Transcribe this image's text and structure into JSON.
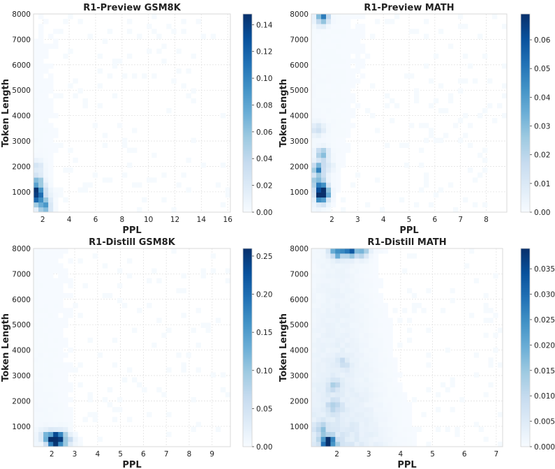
{
  "chart_data": [
    {
      "type": "heatmap",
      "title": "R1-Preview GSM8K",
      "xlabel": "PPL",
      "ylabel": "Token Length",
      "xlim": [
        1.3,
        16.2
      ],
      "ylim": [
        200,
        8000
      ],
      "xticks": [
        2,
        4,
        6,
        8,
        10,
        12,
        14,
        16
      ],
      "yticks": [
        1000,
        2000,
        3000,
        4000,
        5000,
        6000,
        7000,
        8000
      ],
      "colorbar": {
        "min": 0,
        "max": 0.148,
        "ticks": [
          0.0,
          0.02,
          0.04,
          0.06,
          0.08,
          0.1,
          0.12,
          0.14
        ],
        "format": 2
      },
      "hotspots": [
        {
          "x": 1.6,
          "y": 820,
          "value": 0.148
        },
        {
          "x": 1.6,
          "y": 1150,
          "value": 0.095
        },
        {
          "x": 1.6,
          "y": 1500,
          "value": 0.045
        },
        {
          "x": 2.0,
          "y": 520,
          "value": 0.07
        },
        {
          "x": 1.6,
          "y": 2000,
          "value": 0.025
        },
        {
          "x": 2.2,
          "y": 300,
          "value": 0.03
        },
        {
          "x": 2.4,
          "y": 900,
          "value": 0.012
        }
      ]
    },
    {
      "type": "heatmap",
      "title": "R1-Preview MATH",
      "xlabel": "PPL",
      "ylabel": "Token Length",
      "xlim": [
        1.2,
        8.8
      ],
      "ylim": [
        200,
        8000
      ],
      "xticks": [
        2,
        3,
        4,
        5,
        6,
        7,
        8
      ],
      "yticks": [
        1000,
        2000,
        3000,
        4000,
        5000,
        6000,
        7000,
        8000
      ],
      "colorbar": {
        "min": 0,
        "max": 0.069,
        "ticks": [
          0.0,
          0.01,
          0.02,
          0.03,
          0.04,
          0.05,
          0.06
        ],
        "format": 2
      },
      "hotspots": [
        {
          "x": 1.62,
          "y": 1080,
          "value": 0.069
        },
        {
          "x": 1.62,
          "y": 800,
          "value": 0.055
        },
        {
          "x": 1.45,
          "y": 1400,
          "value": 0.04
        },
        {
          "x": 1.45,
          "y": 1900,
          "value": 0.035
        },
        {
          "x": 1.62,
          "y": 2500,
          "value": 0.025
        },
        {
          "x": 1.62,
          "y": 7850,
          "value": 0.045
        },
        {
          "x": 1.45,
          "y": 3500,
          "value": 0.015
        },
        {
          "x": 1.8,
          "y": 2000,
          "value": 0.012
        }
      ]
    },
    {
      "type": "heatmap",
      "title": "R1-Distill GSM8K",
      "xlabel": "PPL",
      "ylabel": "Token Length",
      "xlim": [
        1.2,
        9.8
      ],
      "ylim": [
        200,
        8000
      ],
      "xticks": [
        2,
        3,
        4,
        5,
        6,
        7,
        8,
        9
      ],
      "yticks": [
        1000,
        2000,
        3000,
        4000,
        5000,
        6000,
        7000,
        8000
      ],
      "colorbar": {
        "min": 0,
        "max": 0.26,
        "ticks": [
          0.0,
          0.05,
          0.1,
          0.15,
          0.2,
          0.25
        ],
        "format": 2
      },
      "hotspots": [
        {
          "x": 2.0,
          "y": 500,
          "value": 0.26
        },
        {
          "x": 2.25,
          "y": 500,
          "value": 0.24
        },
        {
          "x": 2.55,
          "y": 450,
          "value": 0.08
        },
        {
          "x": 1.7,
          "y": 650,
          "value": 0.04
        },
        {
          "x": 2.8,
          "y": 400,
          "value": 0.03
        },
        {
          "x": 2.5,
          "y": 800,
          "value": 0.015
        }
      ]
    },
    {
      "type": "heatmap",
      "title": "R1-Distill MATH",
      "xlabel": "PPL",
      "ylabel": "Token Length",
      "xlim": [
        1.2,
        7.2
      ],
      "ylim": [
        200,
        8000
      ],
      "xticks": [
        2,
        3,
        4,
        5,
        6,
        7
      ],
      "yticks": [
        1000,
        2000,
        3000,
        4000,
        5000,
        6000,
        7000,
        8000
      ],
      "colorbar": {
        "min": 0,
        "max": 0.039,
        "ticks": [
          0.0,
          0.005,
          0.01,
          0.015,
          0.02,
          0.025,
          0.03,
          0.035
        ],
        "format": 3
      },
      "hotspots": [
        {
          "x": 1.7,
          "y": 400,
          "value": 0.039
        },
        {
          "x": 1.9,
          "y": 200,
          "value": 0.015
        },
        {
          "x": 2.0,
          "y": 7900,
          "value": 0.03
        },
        {
          "x": 2.4,
          "y": 7900,
          "value": 0.028
        },
        {
          "x": 2.8,
          "y": 7900,
          "value": 0.02
        },
        {
          "x": 1.9,
          "y": 1800,
          "value": 0.012
        },
        {
          "x": 1.9,
          "y": 2600,
          "value": 0.009
        },
        {
          "x": 2.2,
          "y": 3500,
          "value": 0.006
        },
        {
          "x": 1.5,
          "y": 900,
          "value": 0.01
        }
      ]
    }
  ]
}
